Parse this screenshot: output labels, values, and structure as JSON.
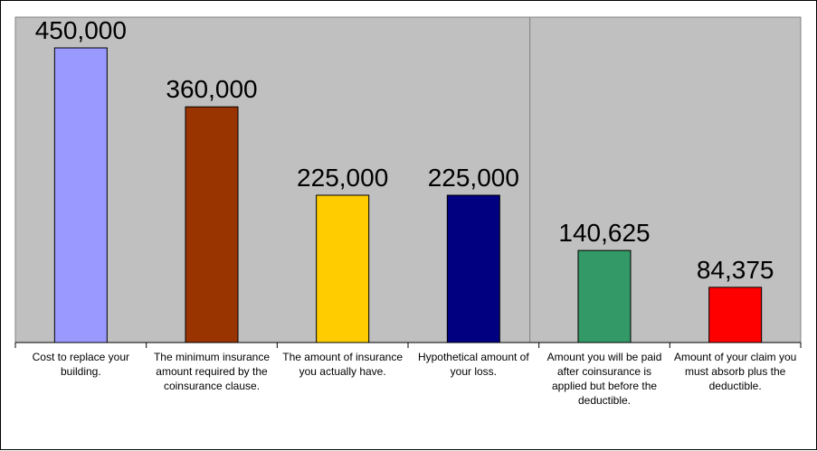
{
  "chart_data": {
    "type": "bar",
    "categories": [
      "Cost to replace your building.",
      "The minimum insurance amount required by the coinsurance clause.",
      "The amount of insurance you actually have.",
      "Hypothetical amount of your loss.",
      "Amount you will be paid after coinsurance is applied but before the deductible.",
      "Amount of your claim you must absorb plus the deductible."
    ],
    "values": [
      450000,
      360000,
      225000,
      225000,
      140625,
      84375
    ],
    "value_labels": [
      "450,000",
      "360,000",
      "225,000",
      "225,000",
      "140,625",
      "84,375"
    ],
    "colors": [
      "#9999ff",
      "#993300",
      "#ffcc00",
      "#000080",
      "#339966",
      "#ff0000"
    ],
    "plot_background": "#c0c0c0",
    "ylim": [
      0,
      450000
    ],
    "grid": false,
    "legend": "none",
    "title": "",
    "xlabel": "",
    "ylabel": ""
  }
}
